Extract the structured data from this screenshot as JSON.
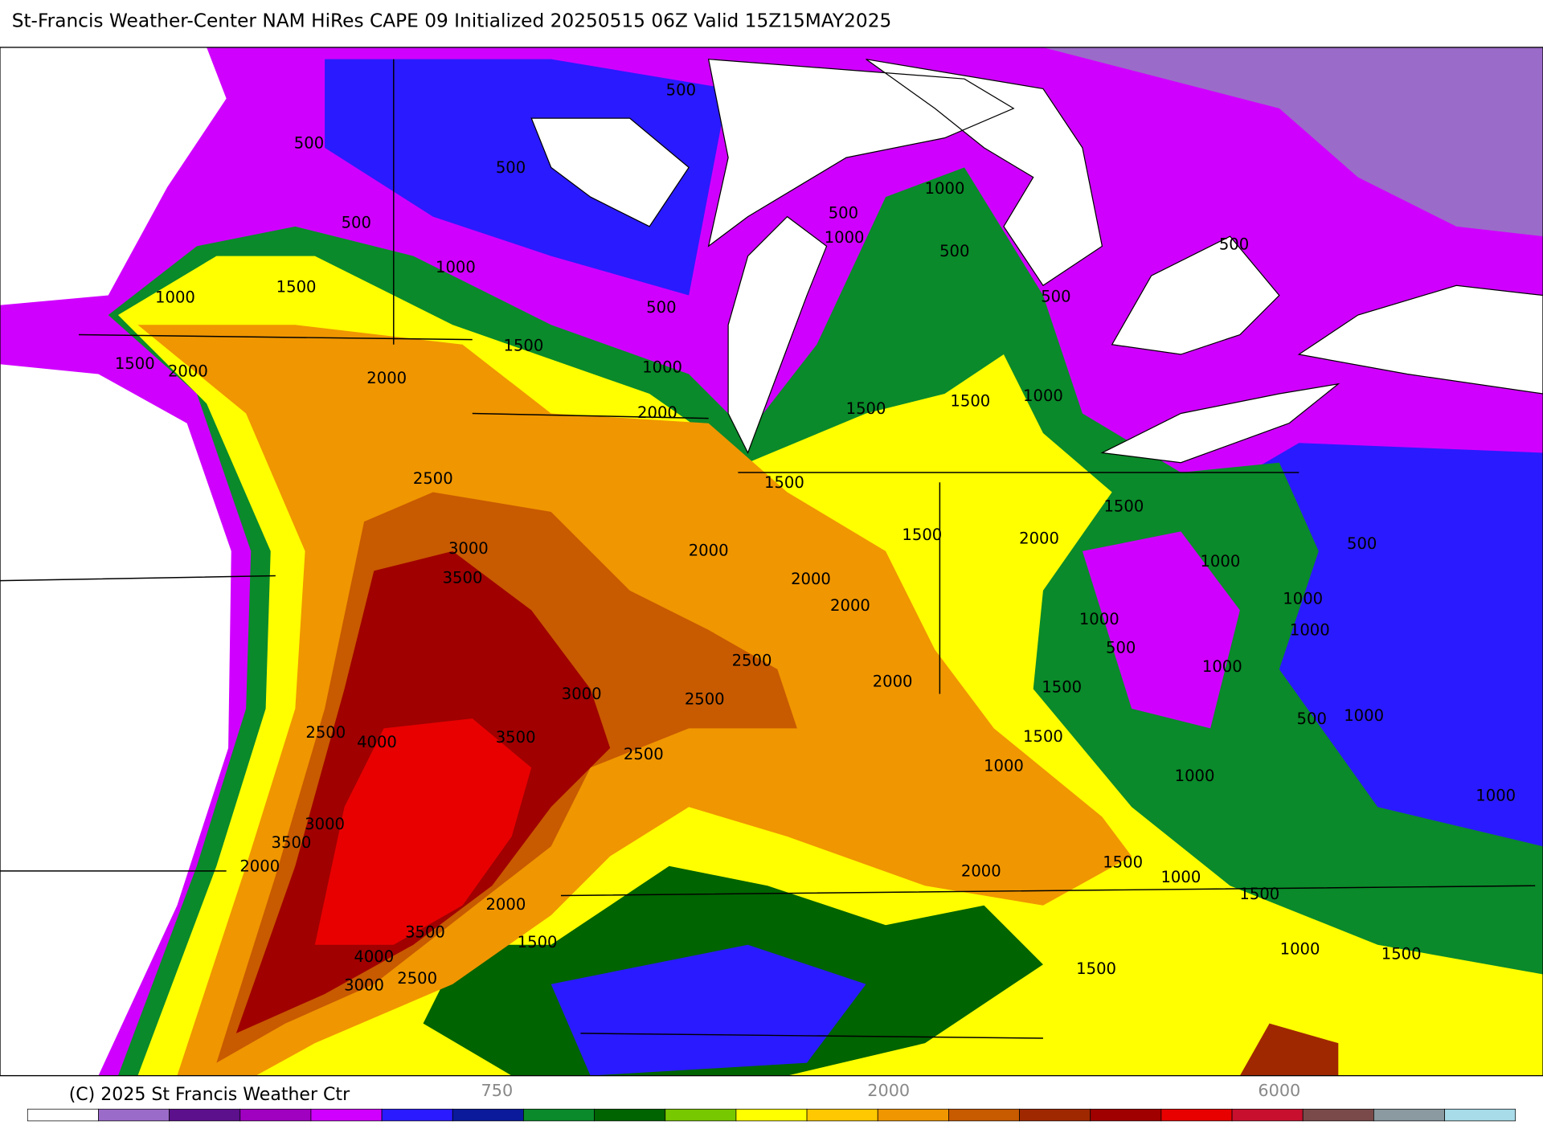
{
  "title": "St-Francis Weather-Center NAM HiRes CAPE  09 Initialized 20250515 06Z Valid 15Z15MAY2025",
  "copyright": "(C) 2025 St Francis Weather Ctr",
  "colorbar": {
    "labels": [
      "750",
      "2000",
      "6000"
    ],
    "colors": [
      "#ffffff",
      "#9b6bc9",
      "#5c108c",
      "#a000c0",
      "#d000ff",
      "#2a1aff",
      "#0a1a9a",
      "#0a8a2a",
      "#006400",
      "#78c800",
      "#ffff00",
      "#ffc800",
      "#f09600",
      "#c85a00",
      "#a02800",
      "#a00000",
      "#e80000",
      "#c8102e",
      "#7a4a4a",
      "#8a9aa0",
      "#a8dce8"
    ]
  },
  "contour_labels": [
    "500",
    "500",
    "500",
    "500",
    "500",
    "1000",
    "1000",
    "1500",
    "1500",
    "2000",
    "2000",
    "2000",
    "2500",
    "3000",
    "3500",
    "3000",
    "3500",
    "4000",
    "2500",
    "3000",
    "3500",
    "2000",
    "4000",
    "3500",
    "3000",
    "2500",
    "2000",
    "1500",
    "2500",
    "2500",
    "2500",
    "2000",
    "2000",
    "2000",
    "1500",
    "1500",
    "2000",
    "1000",
    "1000",
    "1500",
    "1500",
    "1500",
    "1500",
    "1500",
    "1000",
    "1000",
    "500",
    "500",
    "500",
    "500",
    "1000",
    "1000",
    "1000",
    "500",
    "1500",
    "2000",
    "1500",
    "1500",
    "1000",
    "2000",
    "1000",
    "1000",
    "1000",
    "500",
    "1000",
    "1000",
    "500",
    "1500",
    "1000",
    "1500",
    "1000"
  ]
}
